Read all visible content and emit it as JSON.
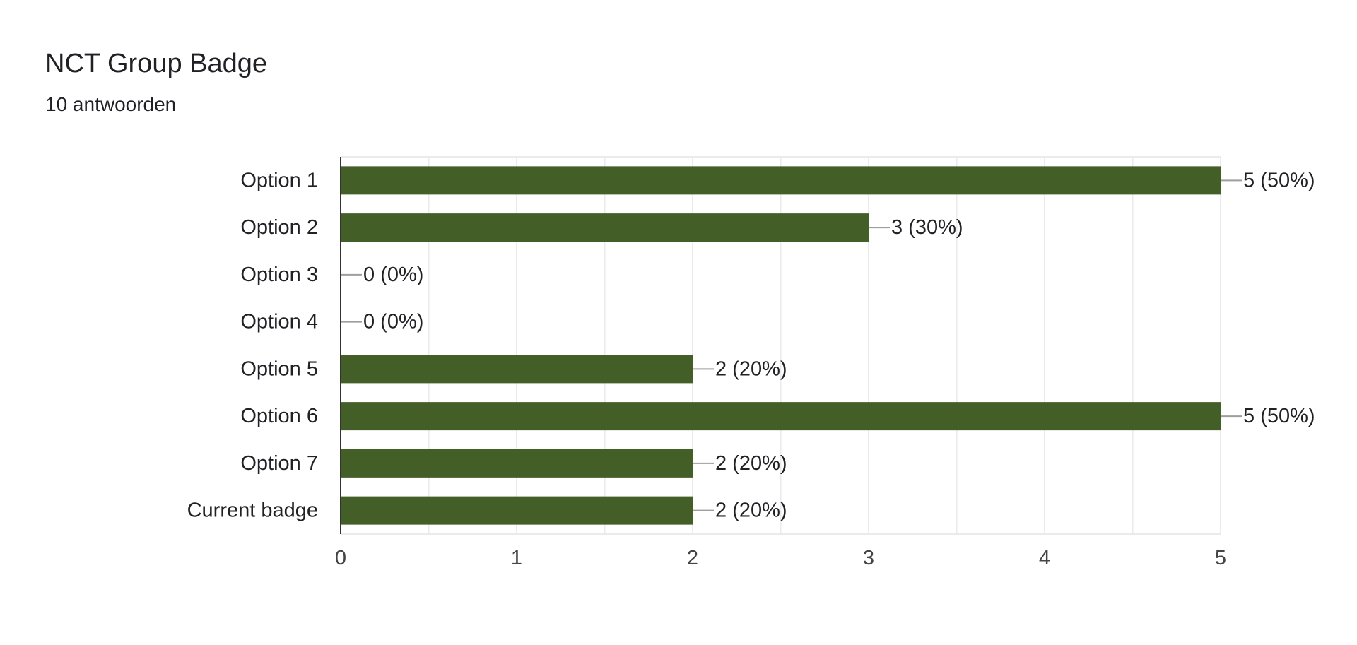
{
  "question": {
    "title": "NCT Group Badge",
    "response_count": "10 antwoorden"
  },
  "chart_data": {
    "type": "bar",
    "orientation": "horizontal",
    "categories": [
      "Option 1",
      "Option 2",
      "Option 3",
      "Option 4",
      "Option 5",
      "Option 6",
      "Option 7",
      "Current badge"
    ],
    "values": [
      5,
      3,
      0,
      0,
      2,
      5,
      2,
      2
    ],
    "data_labels": [
      "5 (50%)",
      "3 (30%)",
      "0 (0%)",
      "0 (0%)",
      "2 (20%)",
      "5 (50%)",
      "2 (20%)",
      "2 (20%)"
    ],
    "xlim": [
      0,
      5
    ],
    "x_ticks": [
      "0",
      "1",
      "2",
      "3",
      "4",
      "5"
    ],
    "grid": true,
    "bar_color": "#445e28"
  }
}
